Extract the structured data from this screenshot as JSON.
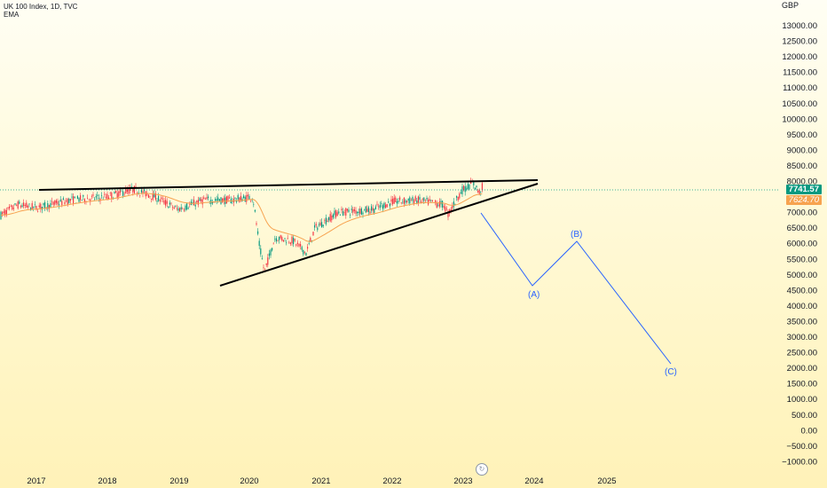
{
  "legend": {
    "symbol_line": "UK 100 Index, 1D, TVC",
    "indicator": "EMA"
  },
  "price_axis": {
    "currency": "GBP",
    "ticks": [
      "13000.00",
      "12500.00",
      "12000.00",
      "11500.00",
      "11000.00",
      "10500.00",
      "10000.00",
      "9500.00",
      "9000.00",
      "8500.00",
      "8000.00",
      "7000.00",
      "6500.00",
      "6000.00",
      "5500.00",
      "5000.00",
      "4500.00",
      "4000.00",
      "3500.00",
      "3000.00",
      "2500.00",
      "2000.00",
      "1500.00",
      "1000.00",
      "500.00",
      "0.00",
      "−500.00",
      "−1000.00"
    ],
    "last_price": "7741.57",
    "ema_price": "7624.70"
  },
  "time_axis": {
    "labels": [
      "2017",
      "2018",
      "2019",
      "2020",
      "2021",
      "2022",
      "2023",
      "2024",
      "2025"
    ]
  },
  "wave_labels": {
    "a": "(A)",
    "b": "(B)",
    "c": "(C)"
  },
  "colors": {
    "up_candle": "#089981",
    "down_candle": "#f23645",
    "ema_line": "#f7a350",
    "trendline": "#000000",
    "projection": "#2962ff",
    "last_price_line": "#089981"
  },
  "replay_icon": "replay-icon"
}
